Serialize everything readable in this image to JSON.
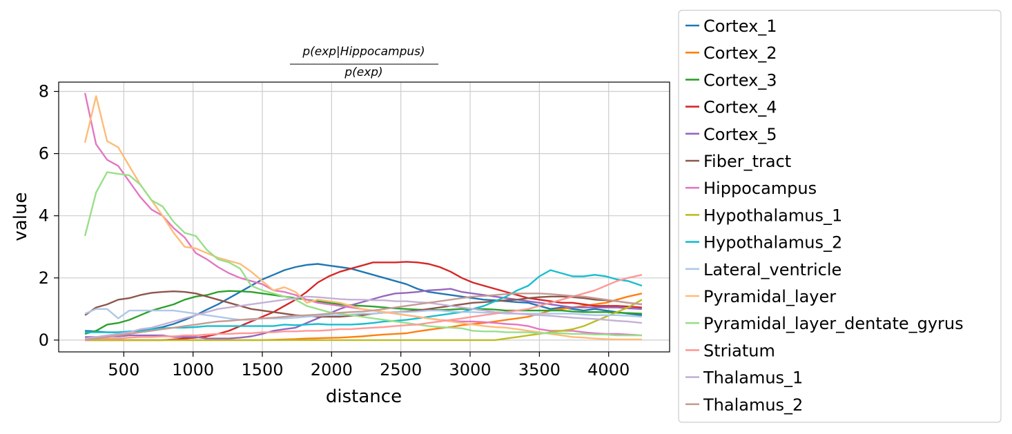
{
  "chart_data": {
    "type": "line",
    "title_numerator": "p(exp|Hippocampus)",
    "title_denominator": "p(exp)",
    "xlabel": "distance",
    "ylabel": "value",
    "xlim": [
      30,
      4440
    ],
    "ylim": [
      -0.38,
      8.3
    ],
    "xticks": [
      500,
      1000,
      1500,
      2000,
      2500,
      3000,
      3500,
      4000
    ],
    "yticks": [
      0,
      2,
      4,
      6,
      8
    ],
    "grid": true,
    "legend_position": "outside-right",
    "x": [
      220,
      300,
      380,
      460,
      540,
      620,
      700,
      780,
      860,
      940,
      1020,
      1100,
      1180,
      1260,
      1340,
      1420,
      1500,
      1580,
      1660,
      1740,
      1820,
      1900,
      1980,
      2060,
      2140,
      2220,
      2300,
      2380,
      2460,
      2540,
      2620,
      2700,
      2780,
      2860,
      2940,
      3020,
      3100,
      3180,
      3260,
      3340,
      3420,
      3500,
      3580,
      3660,
      3740,
      3820,
      3900,
      3980,
      4060,
      4140,
      4240
    ],
    "series": [
      {
        "name": "Cortex_1",
        "color": "#1f77b4",
        "values": [
          0.3,
          0.28,
          0.25,
          0.25,
          0.27,
          0.3,
          0.35,
          0.42,
          0.52,
          0.65,
          0.8,
          0.98,
          1.15,
          1.35,
          1.55,
          1.75,
          1.95,
          2.1,
          2.25,
          2.35,
          2.42,
          2.45,
          2.4,
          2.35,
          2.3,
          2.2,
          2.1,
          2.0,
          1.9,
          1.8,
          1.65,
          1.55,
          1.5,
          1.45,
          1.4,
          1.35,
          1.3,
          1.28,
          1.25,
          1.22,
          1.2,
          1.1,
          1.0,
          1.05,
          1.0,
          0.95,
          1.0,
          0.95,
          0.9,
          0.85,
          0.8
        ]
      },
      {
        "name": "Cortex_2",
        "color": "#ff7f0e",
        "values": [
          0.0,
          0.0,
          0.0,
          0.0,
          0.0,
          0.0,
          0.0,
          0.0,
          0.0,
          0.0,
          0.0,
          0.0,
          0.0,
          0.0,
          0.0,
          0.0,
          0.0,
          0.01,
          0.02,
          0.03,
          0.05,
          0.06,
          0.07,
          0.08,
          0.1,
          0.12,
          0.15,
          0.18,
          0.2,
          0.22,
          0.28,
          0.33,
          0.38,
          0.42,
          0.48,
          0.52,
          0.55,
          0.6,
          0.65,
          0.7,
          0.75,
          0.85,
          0.95,
          1.0,
          1.05,
          1.1,
          1.15,
          1.2,
          1.3,
          1.4,
          1.5
        ]
      },
      {
        "name": "Cortex_3",
        "color": "#2ca02c",
        "values": [
          0.2,
          0.3,
          0.5,
          0.55,
          0.65,
          0.8,
          0.95,
          1.05,
          1.15,
          1.3,
          1.4,
          1.45,
          1.55,
          1.58,
          1.57,
          1.55,
          1.5,
          1.45,
          1.4,
          1.35,
          1.3,
          1.25,
          1.2,
          1.15,
          1.12,
          1.1,
          1.08,
          1.05,
          1.02,
          1.0,
          0.98,
          0.97,
          0.97,
          0.98,
          1.0,
          1.0,
          1.0,
          0.98,
          0.95,
          0.95,
          0.95,
          0.95,
          0.95,
          0.95,
          0.92,
          0.9,
          0.9,
          0.9,
          0.88,
          0.87,
          0.85
        ]
      },
      {
        "name": "Cortex_4",
        "color": "#d62728",
        "values": [
          0.0,
          0.0,
          0.0,
          0.0,
          0.0,
          0.0,
          0.0,
          0.0,
          0.02,
          0.05,
          0.08,
          0.12,
          0.2,
          0.3,
          0.45,
          0.6,
          0.75,
          0.9,
          1.1,
          1.3,
          1.55,
          1.85,
          2.05,
          2.2,
          2.3,
          2.4,
          2.5,
          2.5,
          2.5,
          2.52,
          2.5,
          2.45,
          2.35,
          2.2,
          2.0,
          1.85,
          1.75,
          1.65,
          1.55,
          1.45,
          1.35,
          1.3,
          1.25,
          1.2,
          1.2,
          1.15,
          1.1,
          1.1,
          1.1,
          1.08,
          1.05
        ]
      },
      {
        "name": "Cortex_5",
        "color": "#9467bd",
        "values": [
          0.1,
          0.1,
          0.12,
          0.12,
          0.15,
          0.15,
          0.15,
          0.15,
          0.1,
          0.1,
          0.1,
          0.05,
          0.05,
          0.05,
          0.08,
          0.12,
          0.2,
          0.3,
          0.35,
          0.4,
          0.55,
          0.7,
          0.85,
          1.0,
          1.12,
          1.22,
          1.32,
          1.42,
          1.5,
          1.52,
          1.55,
          1.6,
          1.62,
          1.65,
          1.55,
          1.5,
          1.45,
          1.4,
          1.35,
          1.3,
          1.25,
          1.2,
          1.15,
          1.1,
          1.05,
          1.05,
          1.05,
          1.05,
          1.05,
          1.02,
          1.0
        ]
      },
      {
        "name": "Fiber_tract",
        "color": "#8c564b",
        "values": [
          0.8,
          1.05,
          1.15,
          1.3,
          1.35,
          1.45,
          1.52,
          1.55,
          1.57,
          1.55,
          1.5,
          1.4,
          1.3,
          1.2,
          1.1,
          1.0,
          0.95,
          0.9,
          0.85,
          0.8,
          0.78,
          0.75,
          0.75,
          0.75,
          0.78,
          0.8,
          0.85,
          0.88,
          0.9,
          0.92,
          0.95,
          1.0,
          1.05,
          1.1,
          1.15,
          1.2,
          1.22,
          1.25,
          1.28,
          1.3,
          1.35,
          1.38,
          1.4,
          1.4,
          1.38,
          1.35,
          1.3,
          1.28,
          1.25,
          1.2,
          1.15
        ]
      },
      {
        "name": "Hippocampus",
        "color": "#e377c2",
        "values": [
          7.95,
          6.3,
          5.8,
          5.6,
          5.1,
          4.6,
          4.2,
          4.0,
          3.6,
          3.3,
          2.8,
          2.6,
          2.35,
          2.15,
          2.0,
          1.9,
          1.8,
          1.6,
          1.55,
          1.45,
          1.3,
          1.2,
          1.15,
          1.1,
          1.05,
          1.0,
          0.95,
          0.9,
          0.85,
          0.8,
          0.75,
          0.7,
          0.65,
          0.62,
          0.6,
          0.6,
          0.58,
          0.55,
          0.52,
          0.5,
          0.45,
          0.35,
          0.3,
          0.3,
          0.3,
          0.25,
          0.22,
          0.2,
          0.2,
          0.18,
          0.15
        ]
      },
      {
        "name": "Hypothalamus_1",
        "color": "#bcbd22",
        "values": [
          0.0,
          0.0,
          0.0,
          0.0,
          0.0,
          0.0,
          0.0,
          0.0,
          0.0,
          0.0,
          0.0,
          0.0,
          0.0,
          0.0,
          0.0,
          0.0,
          0.0,
          0.0,
          0.0,
          0.0,
          0.0,
          0.0,
          0.0,
          0.0,
          0.0,
          0.0,
          0.0,
          0.0,
          0.0,
          0.0,
          0.0,
          0.0,
          0.0,
          0.0,
          0.0,
          0.0,
          0.0,
          0.0,
          0.05,
          0.1,
          0.15,
          0.2,
          0.25,
          0.3,
          0.35,
          0.45,
          0.6,
          0.75,
          0.9,
          1.05,
          1.3
        ]
      },
      {
        "name": "Hypothalamus_2",
        "color": "#17becf",
        "values": [
          0.25,
          0.25,
          0.25,
          0.25,
          0.28,
          0.3,
          0.35,
          0.38,
          0.4,
          0.4,
          0.42,
          0.45,
          0.45,
          0.45,
          0.45,
          0.45,
          0.45,
          0.45,
          0.5,
          0.48,
          0.5,
          0.52,
          0.5,
          0.5,
          0.5,
          0.52,
          0.55,
          0.6,
          0.62,
          0.65,
          0.7,
          0.75,
          0.8,
          0.85,
          0.9,
          1.0,
          1.1,
          1.25,
          1.4,
          1.6,
          1.75,
          2.05,
          2.25,
          2.15,
          2.05,
          2.05,
          2.1,
          2.05,
          1.95,
          1.9,
          1.75
        ]
      },
      {
        "name": "Lateral_ventricle",
        "color": "#aec7e8",
        "values": [
          0.85,
          1.0,
          1.0,
          0.7,
          0.95,
          0.95,
          0.95,
          0.95,
          0.95,
          0.9,
          0.85,
          0.8,
          0.75,
          0.7,
          0.65,
          0.65,
          0.7,
          0.7,
          0.7,
          0.72,
          0.75,
          0.78,
          0.8,
          0.8,
          0.82,
          0.85,
          0.85,
          0.88,
          0.9,
          0.9,
          0.92,
          0.95,
          0.95,
          0.92,
          0.9,
          0.9,
          0.88,
          0.88,
          0.85,
          0.85,
          0.85,
          0.85,
          0.85,
          0.85,
          0.85,
          0.82,
          0.8,
          0.8,
          0.8,
          0.78,
          0.75
        ]
      },
      {
        "name": "Pyramidal_layer",
        "color": "#ffbb78",
        "values": [
          6.35,
          7.85,
          6.4,
          6.2,
          5.6,
          5.0,
          4.5,
          4.0,
          3.45,
          3.0,
          2.95,
          2.8,
          2.65,
          2.55,
          2.45,
          2.2,
          1.9,
          1.6,
          1.7,
          1.55,
          1.2,
          1.3,
          1.25,
          1.2,
          1.1,
          1.0,
          0.95,
          0.9,
          0.85,
          0.8,
          0.75,
          0.7,
          0.65,
          0.6,
          0.55,
          0.5,
          0.45,
          0.42,
          0.4,
          0.35,
          0.3,
          0.25,
          0.2,
          0.15,
          0.1,
          0.08,
          0.05,
          0.03,
          0.02,
          0.02,
          0.02
        ]
      },
      {
        "name": "Pyramidal_layer_dentate_gyrus",
        "color": "#98df8a",
        "values": [
          3.35,
          4.75,
          5.4,
          5.35,
          5.3,
          5.0,
          4.5,
          4.3,
          3.8,
          3.45,
          3.35,
          2.9,
          2.6,
          2.5,
          2.3,
          1.75,
          1.6,
          1.5,
          1.4,
          1.3,
          1.1,
          1.0,
          0.9,
          0.85,
          0.8,
          0.75,
          0.7,
          0.65,
          0.6,
          0.55,
          0.5,
          0.45,
          0.42,
          0.4,
          0.38,
          0.3,
          0.28,
          0.28,
          0.25,
          0.25,
          0.25,
          0.22,
          0.22,
          0.22,
          0.2,
          0.2,
          0.18,
          0.18,
          0.15,
          0.15,
          0.15
        ]
      },
      {
        "name": "Striatum",
        "color": "#ff9896",
        "values": [
          0.05,
          0.05,
          0.05,
          0.05,
          0.08,
          0.1,
          0.1,
          0.12,
          0.12,
          0.15,
          0.15,
          0.18,
          0.2,
          0.2,
          0.22,
          0.22,
          0.25,
          0.25,
          0.28,
          0.28,
          0.3,
          0.3,
          0.32,
          0.35,
          0.35,
          0.38,
          0.4,
          0.42,
          0.45,
          0.48,
          0.5,
          0.55,
          0.6,
          0.65,
          0.7,
          0.75,
          0.8,
          0.85,
          0.9,
          0.95,
          1.0,
          1.1,
          1.2,
          1.3,
          1.4,
          1.5,
          1.6,
          1.75,
          1.9,
          2.0,
          2.1
        ]
      },
      {
        "name": "Thalamus_1",
        "color": "#c5b0d5",
        "values": [
          0.05,
          0.1,
          0.15,
          0.2,
          0.25,
          0.35,
          0.4,
          0.5,
          0.6,
          0.7,
          0.8,
          0.9,
          1.0,
          1.05,
          1.1,
          1.15,
          1.2,
          1.25,
          1.3,
          1.35,
          1.4,
          1.38,
          1.35,
          1.32,
          1.3,
          1.3,
          1.28,
          1.28,
          1.25,
          1.25,
          1.22,
          1.2,
          1.15,
          1.1,
          1.05,
          1.0,
          0.95,
          0.9,
          0.88,
          0.85,
          0.82,
          0.8,
          0.78,
          0.75,
          0.72,
          0.7,
          0.68,
          0.65,
          0.62,
          0.6,
          0.55
        ]
      },
      {
        "name": "Thalamus_2",
        "color": "#c49c94",
        "values": [
          0.0,
          0.05,
          0.1,
          0.15,
          0.2,
          0.25,
          0.3,
          0.35,
          0.4,
          0.45,
          0.5,
          0.55,
          0.6,
          0.62,
          0.65,
          0.68,
          0.7,
          0.72,
          0.75,
          0.78,
          0.8,
          0.82,
          0.85,
          0.88,
          0.9,
          0.92,
          0.95,
          1.0,
          1.05,
          1.1,
          1.15,
          1.2,
          1.25,
          1.3,
          1.35,
          1.4,
          1.42,
          1.45,
          1.48,
          1.5,
          1.5,
          1.5,
          1.48,
          1.45,
          1.42,
          1.4,
          1.35,
          1.3,
          1.25,
          1.2,
          1.15
        ]
      }
    ]
  }
}
